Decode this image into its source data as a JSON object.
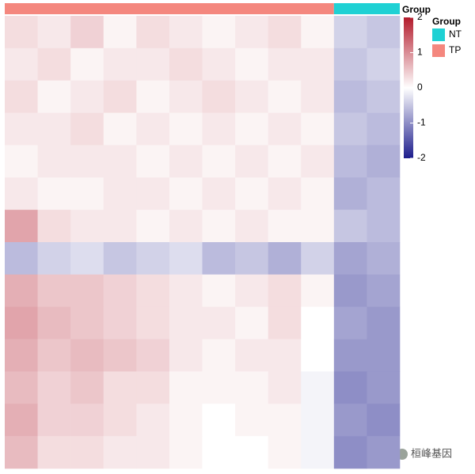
{
  "chart_data": {
    "type": "heatmap",
    "annotation_label": "Group",
    "legend_title": "Group",
    "colorscale": {
      "lim": [
        -2,
        2
      ],
      "ticks": [
        2,
        1,
        0,
        -1,
        -2
      ],
      "colors": [
        "#1c1c8c",
        "#ffffff",
        "#b31b2c"
      ]
    },
    "series": [
      {
        "name": "TP",
        "color": "#f4877e",
        "values": [
          [
            0.3,
            0.2,
            0.4,
            0.1,
            0.3,
            0.2,
            0.1,
            0.2,
            0.3,
            0.1
          ],
          [
            0.2,
            0.3,
            0.1,
            0.2,
            0.2,
            0.3,
            0.2,
            0.1,
            0.2,
            0.2
          ],
          [
            0.3,
            0.1,
            0.2,
            0.3,
            0.1,
            0.2,
            0.3,
            0.2,
            0.1,
            0.2
          ],
          [
            0.2,
            0.2,
            0.3,
            0.1,
            0.2,
            0.1,
            0.2,
            0.1,
            0.2,
            0.1
          ],
          [
            0.1,
            0.2,
            0.2,
            0.2,
            0.1,
            0.2,
            0.1,
            0.2,
            0.1,
            0.2
          ],
          [
            0.2,
            0.1,
            0.1,
            0.2,
            0.2,
            0.1,
            0.2,
            0.1,
            0.2,
            0.1
          ],
          [
            0.8,
            0.3,
            0.2,
            0.2,
            0.1,
            0.2,
            0.1,
            0.2,
            0.1,
            0.1
          ],
          [
            -0.6,
            -0.4,
            -0.3,
            -0.5,
            -0.4,
            -0.3,
            -0.6,
            -0.5,
            -0.7,
            -0.4
          ],
          [
            0.7,
            0.5,
            0.5,
            0.4,
            0.3,
            0.2,
            0.1,
            0.2,
            0.3,
            0.1
          ],
          [
            0.8,
            0.6,
            0.5,
            0.4,
            0.3,
            0.2,
            0.2,
            0.1,
            0.3,
            0.0
          ],
          [
            0.7,
            0.5,
            0.6,
            0.5,
            0.4,
            0.2,
            0.1,
            0.2,
            0.2,
            0.0
          ],
          [
            0.6,
            0.4,
            0.5,
            0.3,
            0.3,
            0.1,
            0.1,
            0.1,
            0.2,
            -0.1
          ],
          [
            0.7,
            0.4,
            0.4,
            0.3,
            0.2,
            0.1,
            0.0,
            0.1,
            0.1,
            -0.1
          ],
          [
            0.6,
            0.3,
            0.3,
            0.2,
            0.2,
            0.1,
            0.0,
            0.0,
            0.1,
            -0.1
          ]
        ]
      },
      {
        "name": "NT",
        "color": "#1fd1d4",
        "values": [
          [
            -0.4,
            -0.5
          ],
          [
            -0.5,
            -0.4
          ],
          [
            -0.6,
            -0.5
          ],
          [
            -0.5,
            -0.6
          ],
          [
            -0.6,
            -0.7
          ],
          [
            -0.7,
            -0.6
          ],
          [
            -0.5,
            -0.6
          ],
          [
            -0.8,
            -0.7
          ],
          [
            -0.9,
            -0.8
          ],
          [
            -0.8,
            -0.9
          ],
          [
            -0.9,
            -0.9
          ],
          [
            -1.0,
            -0.9
          ],
          [
            -0.9,
            -1.0
          ],
          [
            -1.0,
            -0.9
          ]
        ]
      }
    ],
    "watermark": "桓峰基因"
  }
}
